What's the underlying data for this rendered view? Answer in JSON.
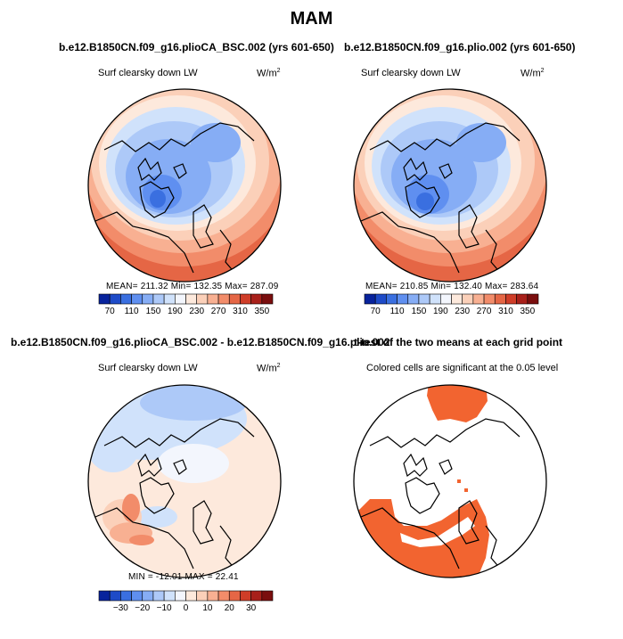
{
  "main_title": "MAM",
  "panels": [
    {
      "title": "b.e12.B1850CN.f09_g16.plioCA_BSC.002 (yrs 601-650)",
      "variable": "Surf clearsky down LW",
      "units": "W/m",
      "units_sup": "2",
      "stats": "MEAN= 211.32   Min= 132.35   Max= 287.09"
    },
    {
      "title": "b.e12.B1850CN.f09_g16.plio.002 (yrs 601-650)",
      "variable": "Surf clearsky down LW",
      "units": "W/m",
      "units_sup": "2",
      "stats": "MEAN= 210.85   Min= 132.40   Max= 283.64"
    },
    {
      "title": "b.e12.B1850CN.f09_g16.plioCA_BSC.002 - b.e12.B1850CN.f09_g16.plio.002",
      "variable": "Surf clearsky down LW",
      "units": "W/m",
      "units_sup": "2",
      "stats": "MIN = -12.01   MAX =  22.41"
    },
    {
      "title": "t-test of the two means at each grid point",
      "variable": "Colored cells are significant at the 0.05 level"
    }
  ],
  "chart_data": [
    {
      "type": "heatmap",
      "title": "b.e12.B1850CN.f09_g16.plioCA_BSC.002 (yrs 601-650)",
      "variable": "Surf clearsky down LW",
      "units": "W/m2",
      "projection": "polar stereographic (North Pole)",
      "mean": 211.32,
      "min": 132.35,
      "max": 287.09,
      "colorbar_levels": [
        70,
        90,
        110,
        130,
        150,
        170,
        190,
        210,
        230,
        250,
        270,
        290,
        310,
        330,
        350
      ],
      "colorbar_labels": [
        "70",
        "110",
        "150",
        "190",
        "230",
        "270",
        "310",
        "350"
      ],
      "colors": [
        "#08239c",
        "#1e4bc8",
        "#3a6fe0",
        "#5f8ff0",
        "#86adf5",
        "#adc9f8",
        "#d0e2fb",
        "#f3f6fd",
        "#fde9dc",
        "#fbd0b9",
        "#f8b092",
        "#f28c6a",
        "#e56645",
        "#cf3d28",
        "#a8201a",
        "#7a0e0e"
      ]
    },
    {
      "type": "heatmap",
      "title": "b.e12.B1850CN.f09_g16.plio.002 (yrs 601-650)",
      "variable": "Surf clearsky down LW",
      "units": "W/m2",
      "projection": "polar stereographic (North Pole)",
      "mean": 210.85,
      "min": 132.4,
      "max": 283.64,
      "colorbar_levels": [
        70,
        90,
        110,
        130,
        150,
        170,
        190,
        210,
        230,
        250,
        270,
        290,
        310,
        330,
        350
      ],
      "colorbar_labels": [
        "70",
        "110",
        "150",
        "190",
        "230",
        "270",
        "310",
        "350"
      ],
      "colors": [
        "#08239c",
        "#1e4bc8",
        "#3a6fe0",
        "#5f8ff0",
        "#86adf5",
        "#adc9f8",
        "#d0e2fb",
        "#f3f6fd",
        "#fde9dc",
        "#fbd0b9",
        "#f8b092",
        "#f28c6a",
        "#e56645",
        "#cf3d28",
        "#a8201a",
        "#7a0e0e"
      ]
    },
    {
      "type": "heatmap",
      "title": "b.e12.B1850CN.f09_g16.plioCA_BSC.002 - b.e12.B1850CN.f09_g16.plio.002",
      "variable": "Surf clearsky down LW",
      "units": "W/m2",
      "projection": "polar stereographic (North Pole)",
      "min": -12.01,
      "max": 22.41,
      "colorbar_levels": [
        -35,
        -30,
        -25,
        -20,
        -15,
        -10,
        -5,
        0,
        5,
        10,
        15,
        20,
        25,
        30,
        35
      ],
      "colorbar_labels": [
        "-30",
        "-20",
        "-10",
        "0",
        "10",
        "20",
        "30"
      ],
      "colors": [
        "#08239c",
        "#1e4bc8",
        "#3a6fe0",
        "#5f8ff0",
        "#86adf5",
        "#adc9f8",
        "#d0e2fb",
        "#f3f6fd",
        "#fde9dc",
        "#fbd0b9",
        "#f8b092",
        "#f28c6a",
        "#e56645",
        "#cf3d28",
        "#a8201a",
        "#7a0e0e"
      ]
    },
    {
      "type": "heatmap",
      "title": "t-test of the two means at each grid point",
      "variable": "Colored cells are significant at the 0.05 level",
      "significance_level": 0.05,
      "colors": [
        "#ffffff",
        "#f26430"
      ]
    }
  ]
}
